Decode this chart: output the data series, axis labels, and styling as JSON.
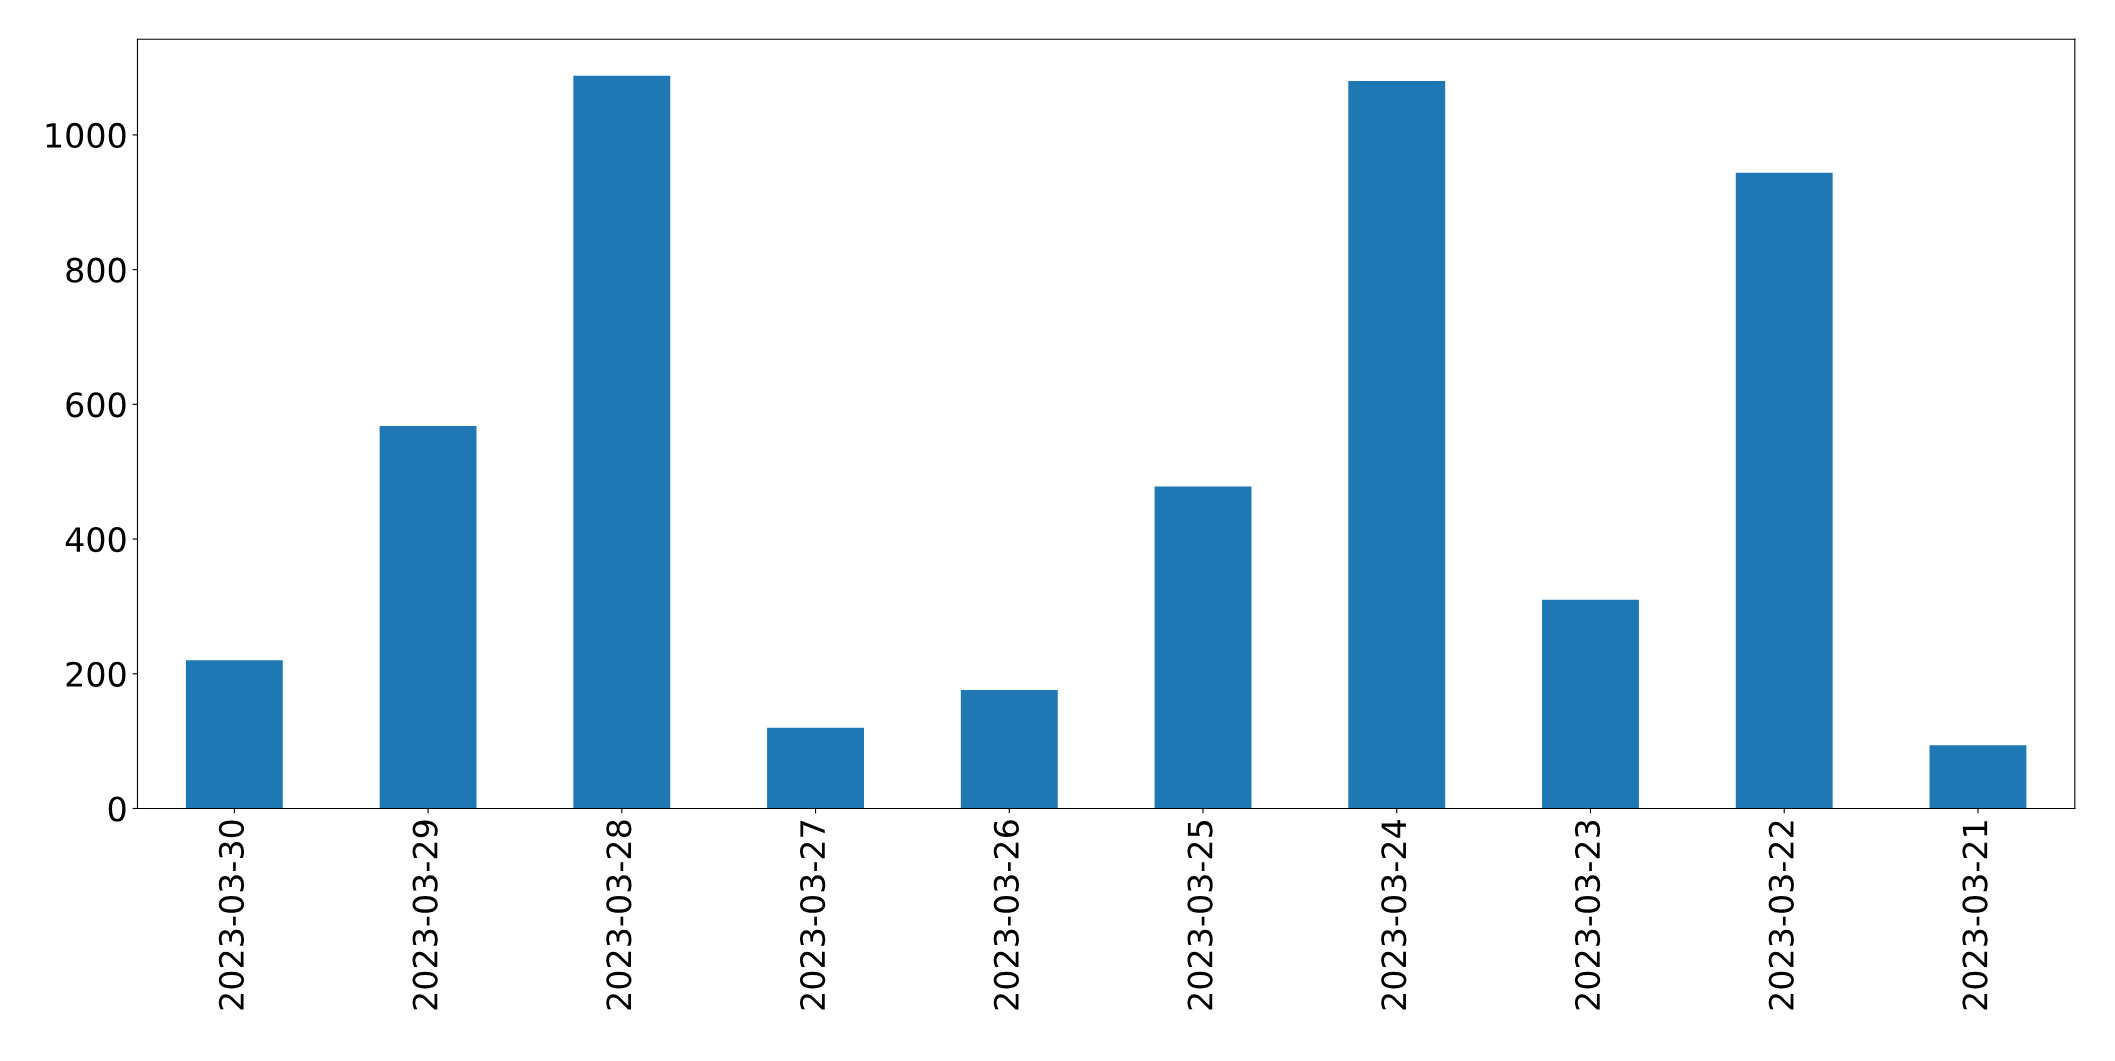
{
  "chart_data": {
    "type": "bar",
    "categories": [
      "2023-03-30",
      "2023-03-29",
      "2023-03-28",
      "2023-03-27",
      "2023-03-26",
      "2023-03-25",
      "2023-03-24",
      "2023-03-23",
      "2023-03-22",
      "2023-03-21"
    ],
    "values": [
      220,
      568,
      1088,
      120,
      176,
      478,
      1080,
      310,
      944,
      94
    ],
    "color": "#1f77b4",
    "ylim": [
      0,
      1142
    ],
    "yticks": [
      0,
      200,
      400,
      600,
      800,
      1000
    ],
    "grid": false,
    "legend": false
  }
}
